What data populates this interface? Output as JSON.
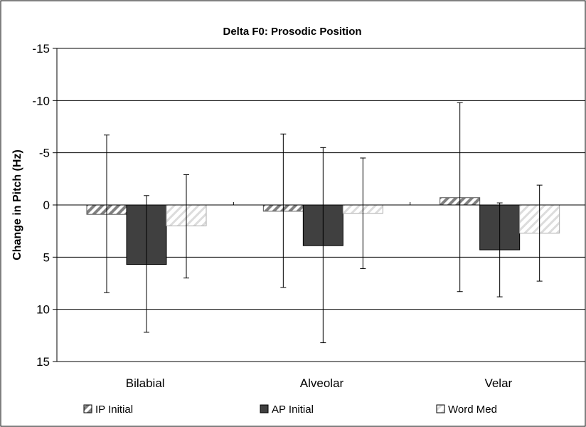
{
  "chart_data": {
    "type": "bar",
    "title": "Delta F0: Prosodic Position",
    "xlabel": "",
    "ylabel": "Change in Pitch (Hz)",
    "y_axis_inverted": true,
    "ylim": [
      -15,
      15
    ],
    "y_ticks": [
      -15,
      -10,
      -5,
      0,
      5,
      10,
      15
    ],
    "y_tick_labels": [
      "-15",
      "-10",
      "-5",
      "0",
      "5",
      "10",
      "15"
    ],
    "grid": true,
    "legend_position": "bottom",
    "categories": [
      "Bilabial",
      "Alveolar",
      "Velar"
    ],
    "series": [
      {
        "name": "IP Initial",
        "pattern": "diagonal-hatch",
        "color": "#808080",
        "values": [
          0.9,
          0.6,
          -0.7
        ],
        "error_upper": [
          -6.7,
          -6.8,
          -9.8
        ],
        "error_lower": [
          8.4,
          7.9,
          8.3
        ]
      },
      {
        "name": "AP Initial",
        "pattern": "solid",
        "color": "#404040",
        "values": [
          5.7,
          3.9,
          4.3
        ],
        "error_upper": [
          -0.9,
          -5.5,
          -0.2
        ],
        "error_lower": [
          12.2,
          13.2,
          8.8
        ]
      },
      {
        "name": "Word Med",
        "pattern": "light-diagonal-hatch",
        "color": "#e0e0e0",
        "values": [
          2.0,
          0.8,
          2.7
        ],
        "error_upper": [
          -2.9,
          -4.5,
          -1.9
        ],
        "error_lower": [
          7.0,
          6.1,
          7.3
        ]
      }
    ]
  }
}
